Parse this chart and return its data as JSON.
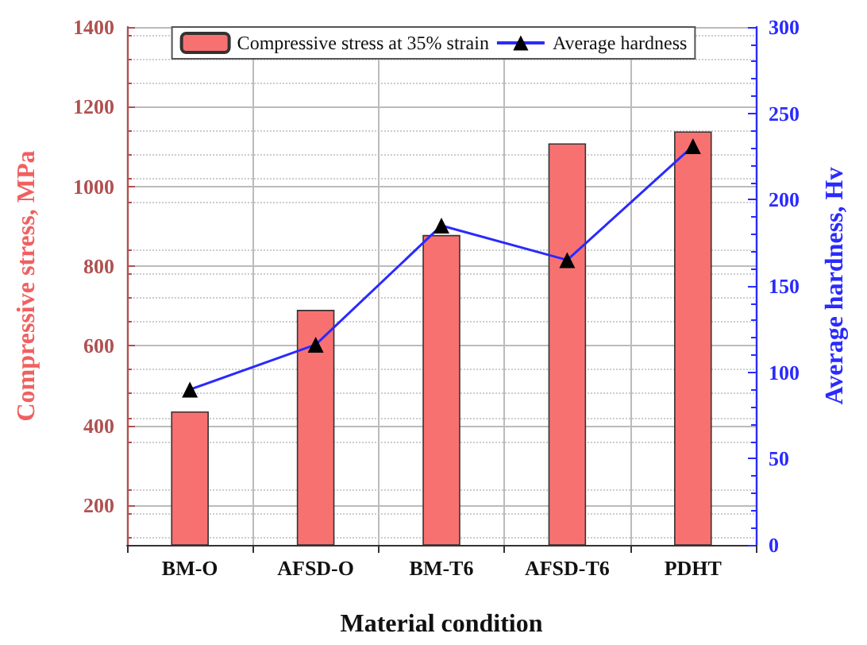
{
  "chart_data": {
    "type": "bar",
    "xlabel": "Material condition",
    "ylabel": "Compressive stress, MPa",
    "y2label": "Average hardness, Hv",
    "categories": [
      "BM-O",
      "AFSD-O",
      "BM-T6",
      "AFSD-T6",
      "PDHT"
    ],
    "series": [
      {
        "name": "Compressive stress at 35% strain",
        "color": "#f87171",
        "values": [
          435,
          690,
          878,
          1108,
          1138
        ]
      },
      {
        "name": "Average hardness",
        "type": "line",
        "axis": "y2",
        "color": "#2a2aff",
        "marker": "triangle",
        "values": [
          90,
          116,
          185,
          165,
          231
        ]
      }
    ],
    "ylim": [
      100,
      1400
    ],
    "yticks": [
      200,
      400,
      600,
      800,
      1000,
      1200,
      1400
    ],
    "y2lim": [
      0,
      300
    ],
    "y2ticks": [
      0,
      50,
      100,
      150,
      200,
      250,
      300
    ],
    "grid": true,
    "legend": "top"
  }
}
